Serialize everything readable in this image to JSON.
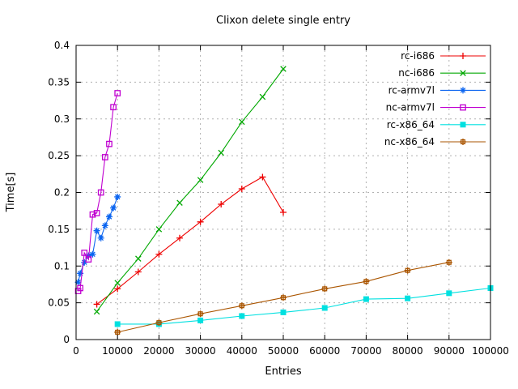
{
  "window": {
    "background": "#ffffff"
  },
  "chart_data": {
    "type": "line",
    "title": "Clixon delete single entry",
    "xlabel": "Entries",
    "ylabel": "Time[s]",
    "xlim": [
      0,
      100000
    ],
    "ylim": [
      0,
      0.4
    ],
    "x_ticks": [
      0,
      10000,
      20000,
      30000,
      40000,
      50000,
      60000,
      70000,
      80000,
      90000,
      100000
    ],
    "y_ticks": [
      0,
      0.05,
      0.1,
      0.15,
      0.2,
      0.25,
      0.3,
      0.35,
      0.4
    ],
    "grid": true,
    "grid_color": "#b0b0b0",
    "border_color": "#000000",
    "legend_position": "top-right-inside",
    "series": [
      {
        "name": "rc-i686",
        "color": "#ee0000",
        "marker": "plus",
        "x": [
          5000,
          10000,
          15000,
          20000,
          25000,
          30000,
          35000,
          40000,
          45000,
          50000
        ],
        "y": [
          0.048,
          0.069,
          0.092,
          0.116,
          0.138,
          0.16,
          0.184,
          0.205,
          0.221,
          0.173
        ]
      },
      {
        "name": "nc-i686",
        "color": "#00a800",
        "marker": "cross",
        "x": [
          5000,
          10000,
          15000,
          20000,
          25000,
          30000,
          35000,
          40000,
          45000,
          50000
        ],
        "y": [
          0.038,
          0.077,
          0.11,
          0.15,
          0.186,
          0.217,
          0.254,
          0.296,
          0.33,
          0.368
        ]
      },
      {
        "name": "rc-armv7l",
        "color": "#0a64f0",
        "marker": "asterisk",
        "x": [
          500,
          1000,
          2000,
          3000,
          4000,
          5000,
          6000,
          7000,
          8000,
          9000,
          10000
        ],
        "y": [
          0.078,
          0.09,
          0.105,
          0.114,
          0.116,
          0.148,
          0.138,
          0.155,
          0.167,
          0.179,
          0.194
        ]
      },
      {
        "name": "nc-armv7l",
        "color": "#c000d0",
        "marker": "square-open",
        "x": [
          500,
          1000,
          2000,
          3000,
          4000,
          5000,
          6000,
          7000,
          8000,
          9000,
          10000
        ],
        "y": [
          0.066,
          0.07,
          0.118,
          0.109,
          0.17,
          0.172,
          0.2,
          0.248,
          0.266,
          0.316,
          0.335
        ]
      },
      {
        "name": "rc-x86_64",
        "color": "#00e0e0",
        "marker": "square-filled",
        "x": [
          10000,
          20000,
          30000,
          40000,
          50000,
          60000,
          70000,
          80000,
          90000,
          100000
        ],
        "y": [
          0.021,
          0.021,
          0.026,
          0.032,
          0.037,
          0.043,
          0.055,
          0.056,
          0.063,
          0.07
        ]
      },
      {
        "name": "nc-x86_64",
        "color": "#aa5500",
        "marker": "square-plus",
        "x": [
          10000,
          20000,
          30000,
          40000,
          50000,
          60000,
          70000,
          80000,
          90000
        ],
        "y": [
          0.01,
          0.023,
          0.035,
          0.046,
          0.057,
          0.069,
          0.079,
          0.094,
          0.105
        ]
      }
    ]
  }
}
